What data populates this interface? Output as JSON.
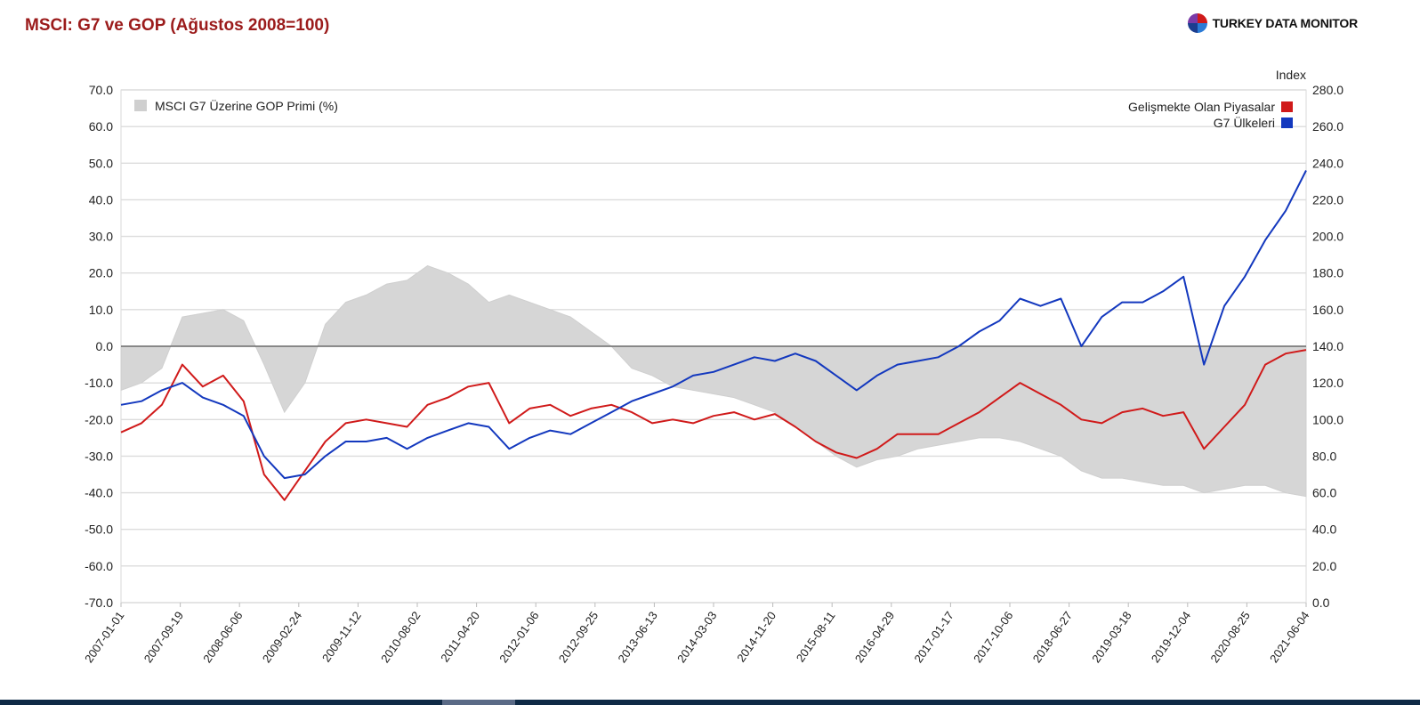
{
  "header": {
    "title": "MSCI: G7 ve GOP (Ağustos 2008=100)",
    "brand": "TURKEY DATA MONITOR"
  },
  "chart_data": {
    "type": "line",
    "y_right_label": "Index",
    "ylim_left": [
      -70,
      70
    ],
    "ylim_right": [
      0,
      280
    ],
    "yticks_left": [
      "70.0",
      "60.0",
      "50.0",
      "40.0",
      "30.0",
      "20.0",
      "10.0",
      "0.0",
      "-10.0",
      "-20.0",
      "-30.0",
      "-40.0",
      "-50.0",
      "-60.0",
      "-70.0"
    ],
    "yticks_right": [
      "280.0",
      "260.0",
      "240.0",
      "220.0",
      "200.0",
      "180.0",
      "160.0",
      "140.0",
      "120.0",
      "100.0",
      "80.0",
      "60.0",
      "40.0",
      "20.0",
      "0.0"
    ],
    "xticks": [
      "2007-01-01",
      "2007-09-19",
      "2008-06-06",
      "2009-02-24",
      "2009-11-12",
      "2010-08-02",
      "2011-04-20",
      "2012-01-06",
      "2012-09-25",
      "2013-06-13",
      "2014-03-03",
      "2014-11-20",
      "2015-08-11",
      "2016-04-29",
      "2017-01-17",
      "2017-10-06",
      "2018-06-27",
      "2019-03-18",
      "2019-12-04",
      "2020-08-25",
      "2021-06-04"
    ],
    "grid": true,
    "legend": {
      "area_label": "MSCI G7 Üzerine GOP Primi (%)",
      "area_position": "top-left",
      "lines_position": "top-right"
    },
    "x": [
      "2007-01",
      "2007-04",
      "2007-07",
      "2007-10",
      "2008-01",
      "2008-04",
      "2008-07",
      "2008-10",
      "2009-01",
      "2009-04",
      "2009-07",
      "2009-10",
      "2010-01",
      "2010-04",
      "2010-07",
      "2010-10",
      "2011-01",
      "2011-04",
      "2011-07",
      "2011-10",
      "2012-01",
      "2012-04",
      "2012-07",
      "2012-10",
      "2013-01",
      "2013-04",
      "2013-07",
      "2013-10",
      "2014-01",
      "2014-04",
      "2014-07",
      "2014-10",
      "2015-01",
      "2015-04",
      "2015-07",
      "2015-10",
      "2016-01",
      "2016-04",
      "2016-07",
      "2016-10",
      "2017-01",
      "2017-04",
      "2017-07",
      "2017-10",
      "2018-01",
      "2018-04",
      "2018-07",
      "2018-10",
      "2019-01",
      "2019-04",
      "2019-07",
      "2019-10",
      "2020-01",
      "2020-04",
      "2020-07",
      "2020-10",
      "2021-01",
      "2021-04",
      "2021-06"
    ],
    "area": {
      "name": "MSCI G7 Üzerine GOP Primi (%)",
      "axis": "left",
      "values": [
        -12,
        -10,
        -6,
        8,
        9,
        10,
        7,
        -5,
        -18,
        -10,
        6,
        12,
        14,
        17,
        18,
        22,
        20,
        17,
        12,
        14,
        12,
        10,
        8,
        4,
        0,
        -6,
        -8,
        -11,
        -12,
        -13,
        -14,
        -16,
        -18,
        -22,
        -26,
        -30,
        -33,
        -31,
        -30,
        -28,
        -27,
        -26,
        -25,
        -25,
        -26,
        -28,
        -30,
        -34,
        -36,
        -36,
        -37,
        -38,
        -38,
        -40,
        -39,
        -38,
        -38,
        -40,
        -41
      ]
    },
    "series": [
      {
        "name": "Gelişmekte Olan Piyasalar",
        "axis": "right",
        "color": "#d01a1a",
        "values": [
          93,
          98,
          108,
          130,
          118,
          124,
          110,
          70,
          56,
          72,
          88,
          98,
          100,
          98,
          96,
          108,
          112,
          118,
          120,
          98,
          106,
          108,
          102,
          106,
          108,
          104,
          98,
          100,
          98,
          102,
          104,
          100,
          103,
          96,
          88,
          82,
          79,
          84,
          92,
          92,
          92,
          98,
          104,
          112,
          120,
          114,
          108,
          100,
          98,
          104,
          106,
          102,
          104,
          84,
          96,
          108,
          130,
          136,
          138
        ]
      },
      {
        "name": "G7 Ülkeleri",
        "axis": "right",
        "color": "#1338be",
        "values": [
          108,
          110,
          116,
          120,
          112,
          108,
          102,
          80,
          68,
          70,
          80,
          88,
          88,
          90,
          84,
          90,
          94,
          98,
          96,
          84,
          90,
          94,
          92,
          98,
          104,
          110,
          114,
          118,
          124,
          126,
          130,
          134,
          132,
          136,
          132,
          124,
          116,
          124,
          130,
          132,
          134,
          140,
          148,
          154,
          166,
          162,
          166,
          140,
          156,
          164,
          164,
          170,
          178,
          130,
          162,
          178,
          198,
          214,
          236
        ]
      }
    ]
  }
}
